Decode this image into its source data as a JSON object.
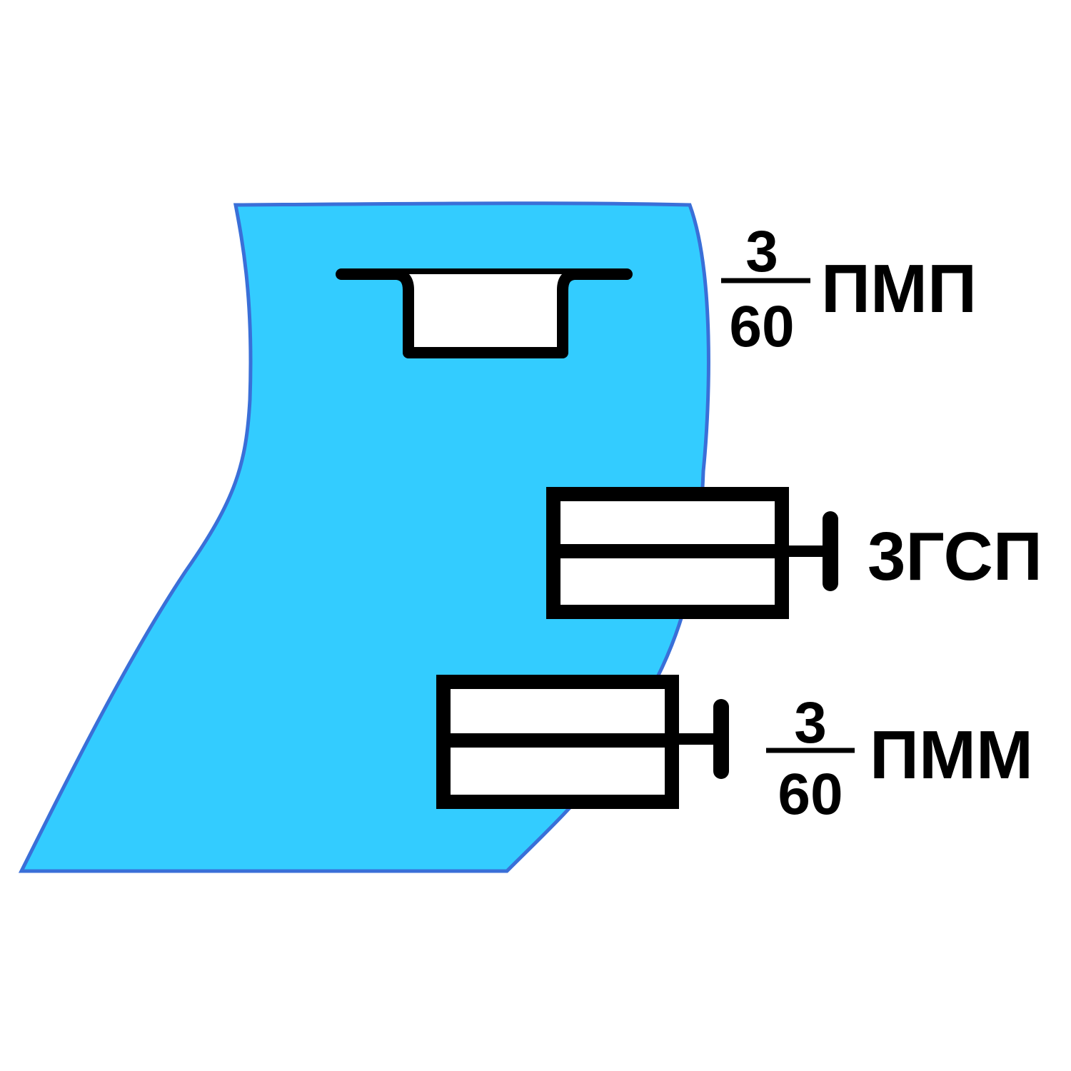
{
  "water_color": "#33CCFF",
  "shore_color": "#3A6FD8",
  "symbol_color": "#000000",
  "symbols": {
    "pmp": {
      "numerator": "3",
      "denominator": "60",
      "code": "ПМП"
    },
    "zgsp": {
      "code": "3ГСП"
    },
    "pmm": {
      "numerator": "3",
      "denominator": "60",
      "code": "ПММ"
    }
  }
}
